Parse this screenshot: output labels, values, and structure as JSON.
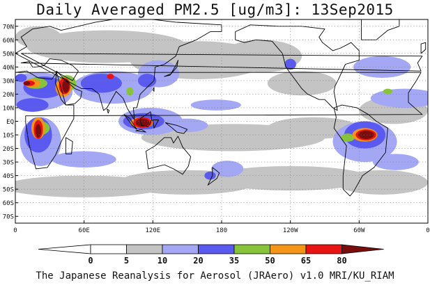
{
  "title": "Daily Averaged PM2.5 [ug/m3]: 13Sep2015",
  "caption": "The Japanese Reanalysis for Aerosol (JRAero) v1.0 MRI/KU_RIAM",
  "map": {
    "projection": "equirectangular",
    "lon_range": [
      0,
      360
    ],
    "lat_range": [
      -75,
      75
    ],
    "grid": "dotted",
    "lat_ticks": [
      {
        "lat": 70,
        "label": "70N"
      },
      {
        "lat": 60,
        "label": "60N"
      },
      {
        "lat": 50,
        "label": "50N"
      },
      {
        "lat": 40,
        "label": "40N"
      },
      {
        "lat": 30,
        "label": "30N"
      },
      {
        "lat": 20,
        "label": "20N"
      },
      {
        "lat": 10,
        "label": "10N"
      },
      {
        "lat": 0,
        "label": "EQ"
      },
      {
        "lat": -10,
        "label": "10S"
      },
      {
        "lat": -20,
        "label": "20S"
      },
      {
        "lat": -30,
        "label": "30S"
      },
      {
        "lat": -40,
        "label": "40S"
      },
      {
        "lat": -50,
        "label": "50S"
      },
      {
        "lat": -60,
        "label": "60S"
      },
      {
        "lat": -70,
        "label": "70S"
      }
    ],
    "lon_ticks": [
      {
        "lon": 0,
        "label": "0"
      },
      {
        "lon": 60,
        "label": "60E"
      },
      {
        "lon": 120,
        "label": "120E"
      },
      {
        "lon": 180,
        "label": "180"
      },
      {
        "lon": 240,
        "label": "120W"
      },
      {
        "lon": 300,
        "label": "60W"
      },
      {
        "lon": 360,
        "label": "0"
      }
    ]
  },
  "colorbar": {
    "under_color": "#ffffff",
    "over_color": "#7a0e0e",
    "bins": [
      {
        "from": 0,
        "to": 5,
        "color": "#ffffff"
      },
      {
        "from": 5,
        "to": 10,
        "color": "#c4c4c4"
      },
      {
        "from": 10,
        "to": 20,
        "color": "#a4a8f4"
      },
      {
        "from": 20,
        "to": 35,
        "color": "#5a5af0"
      },
      {
        "from": 35,
        "to": 50,
        "color": "#88c43a"
      },
      {
        "from": 50,
        "to": 65,
        "color": "#f59416"
      },
      {
        "from": 65,
        "to": 80,
        "color": "#e81414"
      }
    ],
    "labels": [
      "0",
      "5",
      "10",
      "20",
      "35",
      "50",
      "65",
      "80"
    ]
  },
  "fields": [
    {
      "level": 5,
      "name": "north-pacific-haze",
      "color": "#c4c4c4",
      "blobs": [
        [
          160,
          45,
          60,
          14
        ],
        [
          215,
          48,
          35,
          12
        ],
        [
          250,
          28,
          30,
          9
        ]
      ]
    },
    {
      "level": 5,
      "name": "southern-ocean-haze",
      "color": "#c4c4c4",
      "blobs": [
        [
          60,
          -48,
          70,
          8
        ],
        [
          150,
          -45,
          60,
          9
        ],
        [
          240,
          -42,
          70,
          9
        ],
        [
          320,
          -45,
          40,
          9
        ]
      ]
    },
    {
      "level": 5,
      "name": "tropical-belt-haze",
      "color": "#c4c4c4",
      "blobs": [
        [
          190,
          -12,
          80,
          10
        ],
        [
          260,
          -5,
          40,
          8
        ],
        [
          330,
          8,
          30,
          10
        ]
      ]
    },
    {
      "level": 5,
      "name": "eurasia-haze",
      "color": "#c4c4c4",
      "blobs": [
        [
          80,
          55,
          70,
          12
        ],
        [
          20,
          62,
          20,
          8
        ]
      ]
    },
    {
      "level": 10,
      "name": "saharan-plume",
      "color": "#a4a8f4",
      "blobs": [
        [
          20,
          22,
          30,
          14
        ],
        [
          340,
          17,
          30,
          7
        ]
      ]
    },
    {
      "level": 10,
      "name": "asia-haze",
      "color": "#a4a8f4",
      "blobs": [
        [
          85,
          25,
          35,
          12
        ],
        [
          125,
          35,
          18,
          10
        ]
      ]
    },
    {
      "level": 10,
      "name": "maritime-continent-halo",
      "color": "#a4a8f4",
      "blobs": [
        [
          118,
          0,
          28,
          10
        ],
        [
          150,
          -3,
          18,
          5
        ]
      ]
    },
    {
      "level": 10,
      "name": "southern-africa-halo",
      "color": "#a4a8f4",
      "blobs": [
        [
          22,
          -15,
          18,
          18
        ],
        [
          60,
          -28,
          28,
          6
        ]
      ]
    },
    {
      "level": 10,
      "name": "south-america-halo",
      "color": "#a4a8f4",
      "blobs": [
        [
          305,
          -15,
          28,
          15
        ],
        [
          332,
          -30,
          20,
          6
        ]
      ]
    },
    {
      "level": 10,
      "name": "pacific-patches",
      "color": "#a4a8f4",
      "blobs": [
        [
          185,
          -35,
          14,
          6
        ],
        [
          175,
          12,
          22,
          4
        ],
        [
          320,
          40,
          25,
          8
        ]
      ]
    },
    {
      "level": 20,
      "name": "north-africa-core",
      "color": "#5a5af0",
      "blobs": [
        [
          25,
          25,
          18,
          8
        ],
        [
          15,
          12,
          14,
          5
        ]
      ]
    },
    {
      "level": 20,
      "name": "south-asia-core",
      "color": "#5a5af0",
      "blobs": [
        [
          75,
          28,
          18,
          7
        ],
        [
          115,
          30,
          8,
          5
        ]
      ]
    },
    {
      "level": 20,
      "name": "indonesia-core",
      "color": "#5a5af0",
      "blobs": [
        [
          112,
          0,
          18,
          6
        ]
      ]
    },
    {
      "level": 20,
      "name": "southern-africa-core",
      "color": "#5a5af0",
      "blobs": [
        [
          20,
          -10,
          12,
          13
        ]
      ]
    },
    {
      "level": 20,
      "name": "amazon-core",
      "color": "#5a5af0",
      "blobs": [
        [
          305,
          -10,
          18,
          10
        ]
      ]
    },
    {
      "level": 20,
      "name": "scattered-cores",
      "color": "#5a5af0",
      "blobs": [
        [
          240,
          42,
          5,
          4
        ],
        [
          170,
          -40,
          5,
          3
        ],
        [
          5,
          32,
          5,
          3
        ]
      ]
    },
    {
      "level": 35,
      "name": "green-cores",
      "color": "#88c43a",
      "blobs": [
        [
          18,
          28,
          10,
          4
        ],
        [
          45,
          28,
          8,
          6
        ],
        [
          22,
          -5,
          8,
          5
        ],
        [
          290,
          -12,
          6,
          3
        ],
        [
          325,
          22,
          4,
          2
        ],
        [
          100,
          22,
          3,
          3
        ]
      ]
    },
    {
      "level": 50,
      "name": "orange-cores",
      "color": "#f59416",
      "blobs": [
        [
          15,
          28,
          7,
          3
        ],
        [
          42,
          25,
          7,
          7
        ],
        [
          20,
          -5,
          6,
          8
        ],
        [
          305,
          -10,
          11,
          5
        ],
        [
          110,
          -1,
          10,
          4
        ]
      ]
    },
    {
      "level": 65,
      "name": "red-cores",
      "color": "#e81414",
      "blobs": [
        [
          12,
          28,
          5,
          2
        ],
        [
          43,
          26,
          5,
          6
        ],
        [
          20,
          -6,
          4,
          7
        ],
        [
          306,
          -10,
          9,
          4
        ],
        [
          111,
          -1,
          8,
          4
        ],
        [
          83,
          33,
          3,
          2
        ]
      ]
    },
    {
      "level": 80,
      "name": "darkred-cores",
      "color": "#7a0e0e",
      "blobs": [
        [
          10,
          28,
          3,
          1.5
        ],
        [
          44,
          26,
          3,
          5
        ],
        [
          20,
          -7,
          2.5,
          5
        ],
        [
          306,
          -10,
          7,
          3
        ],
        [
          111,
          -1,
          6,
          3
        ]
      ]
    }
  ]
}
